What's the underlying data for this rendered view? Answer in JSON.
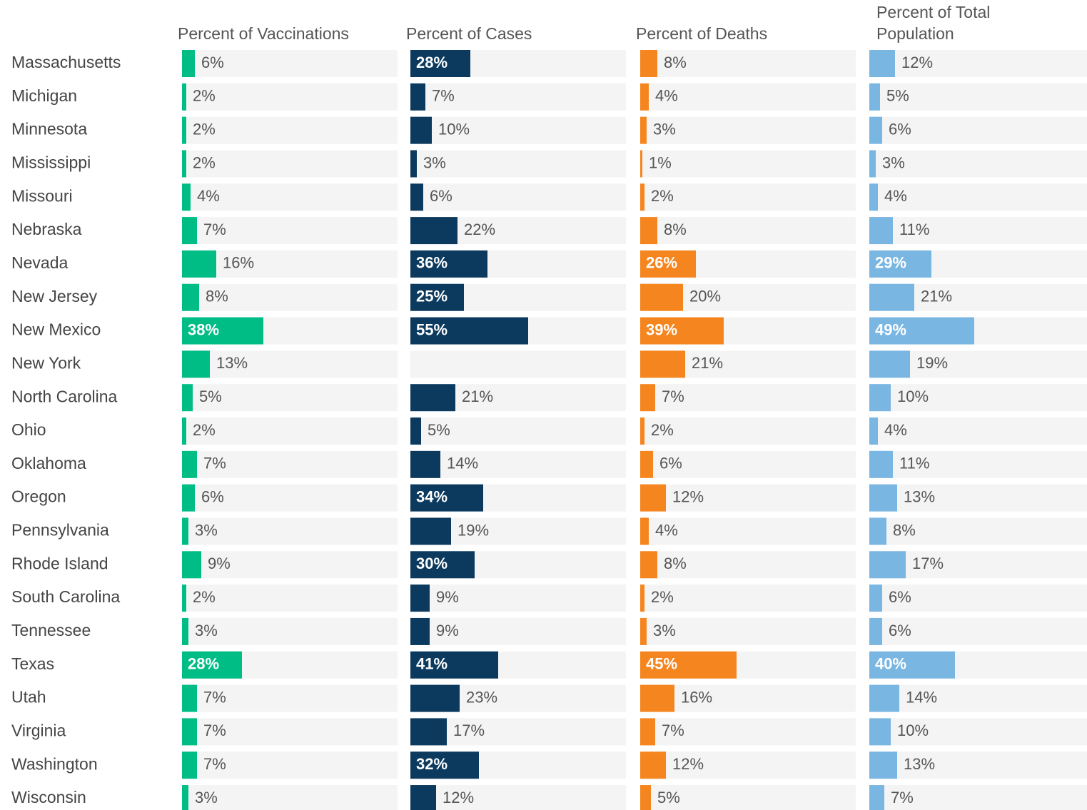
{
  "chart_data": {
    "type": "bar",
    "orientation": "horizontal",
    "xlim": [
      0,
      100
    ],
    "categories": [
      "Massachusetts",
      "Michigan",
      "Minnesota",
      "Mississippi",
      "Missouri",
      "Nebraska",
      "Nevada",
      "New Jersey",
      "New Mexico",
      "New York",
      "North Carolina",
      "Ohio",
      "Oklahoma",
      "Oregon",
      "Pennsylvania",
      "Rhode Island",
      "South Carolina",
      "Tennessee",
      "Texas",
      "Utah",
      "Virginia",
      "Washington",
      "Wisconsin"
    ],
    "series": [
      {
        "name": "Percent of Vaccinations",
        "color": "#00bd86",
        "values": [
          6,
          2,
          2,
          2,
          4,
          7,
          16,
          8,
          38,
          13,
          5,
          2,
          7,
          6,
          3,
          9,
          2,
          3,
          28,
          7,
          7,
          7,
          3
        ],
        "value_labels": [
          "6%",
          "2%",
          "2%",
          "2%",
          "4%",
          "7%",
          "16%",
          "8%",
          "38%",
          "13%",
          "5%",
          "2%",
          "7%",
          "6%",
          "3%",
          "9%",
          "2%",
          "3%",
          "28%",
          "7%",
          "7%",
          "7%",
          "3%"
        ]
      },
      {
        "name": "Percent of Cases",
        "color": "#0b3a5e",
        "values": [
          28,
          7,
          10,
          3,
          6,
          22,
          36,
          25,
          55,
          null,
          21,
          5,
          14,
          34,
          19,
          30,
          9,
          9,
          41,
          23,
          17,
          32,
          12
        ],
        "value_labels": [
          "28%",
          "7%",
          "10%",
          "3%",
          "6%",
          "22%",
          "36%",
          "25%",
          "55%",
          null,
          "21%",
          "5%",
          "14%",
          "34%",
          "19%",
          "30%",
          "9%",
          "9%",
          "41%",
          "23%",
          "17%",
          "32%",
          "12%"
        ]
      },
      {
        "name": "Percent of Deaths",
        "color": "#f5861f",
        "values": [
          8,
          4,
          3,
          1,
          2,
          8,
          26,
          20,
          39,
          21,
          7,
          2,
          6,
          12,
          4,
          8,
          2,
          3,
          45,
          16,
          7,
          12,
          5
        ],
        "value_labels": [
          "8%",
          "4%",
          "3%",
          "1%",
          "2%",
          "8%",
          "26%",
          "20%",
          "39%",
          "21%",
          "7%",
          "2%",
          "6%",
          "12%",
          "4%",
          "8%",
          "2%",
          "3%",
          "45%",
          "16%",
          "7%",
          "12%",
          "5%"
        ]
      },
      {
        "name": "Percent of Total Population",
        "color": "#7ab6e2",
        "values": [
          12,
          5,
          6,
          3,
          4,
          11,
          29,
          21,
          49,
          19,
          10,
          4,
          11,
          13,
          8,
          17,
          6,
          6,
          40,
          14,
          10,
          13,
          7
        ],
        "value_labels": [
          "12%",
          "5%",
          "6%",
          "3%",
          "4%",
          "11%",
          "29%",
          "21%",
          "49%",
          "19%",
          "10%",
          "4%",
          "11%",
          "13%",
          "8%",
          "17%",
          "6%",
          "6%",
          "40%",
          "14%",
          "10%",
          "13%",
          "7%"
        ]
      }
    ]
  }
}
